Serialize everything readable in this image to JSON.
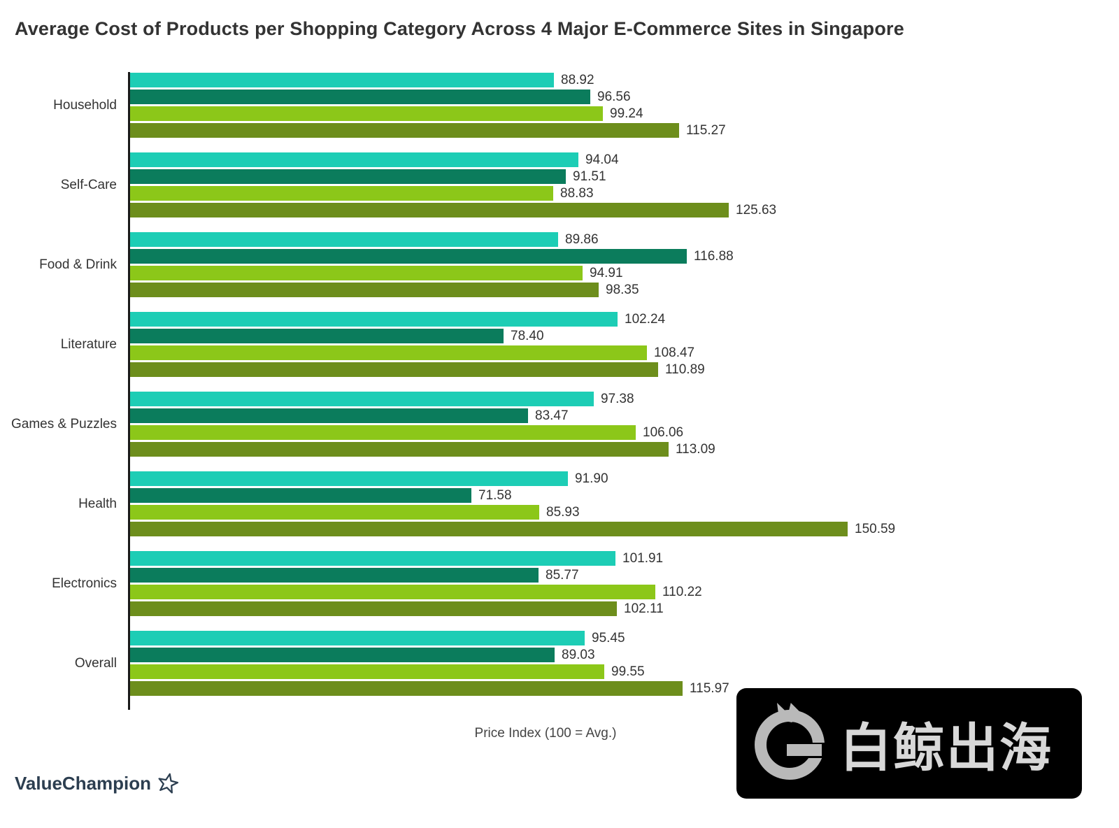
{
  "title": "Average Cost of Products per Shopping Category Across 4 Major E-Commerce Sites in Singapore",
  "chart_data": {
    "type": "bar",
    "orientation": "horizontal",
    "title": "Average Cost of Products per Shopping Category Across 4 Major E-Commerce Sites in Singapore",
    "xlabel": "Price Index (100 = Avg.)",
    "ylabel": "",
    "xlim": [
      0,
      160
    ],
    "grid": false,
    "legend": "none",
    "categories": [
      "Household",
      "Self-Care",
      "Food & Drink",
      "Literature",
      "Games & Puzzles",
      "Health",
      "Electronics",
      "Overall"
    ],
    "series": [
      {
        "name": "series-1-teal",
        "color": "#1DCDB5",
        "values": [
          88.92,
          94.04,
          89.86,
          102.24,
          97.38,
          91.9,
          101.91,
          95.45
        ]
      },
      {
        "name": "series-2-dark-green",
        "color": "#0B7C5C",
        "values": [
          96.56,
          91.51,
          116.88,
          78.4,
          83.47,
          71.58,
          85.77,
          89.03
        ]
      },
      {
        "name": "series-3-light-green",
        "color": "#8CC719",
        "values": [
          99.24,
          88.83,
          94.91,
          108.47,
          106.06,
          85.93,
          110.22,
          99.55
        ]
      },
      {
        "name": "series-4-olive",
        "color": "#6D8E1C",
        "values": [
          115.27,
          125.63,
          98.35,
          110.89,
          113.09,
          150.59,
          102.11,
          115.97
        ]
      }
    ],
    "value_label_format": "2-decimals"
  },
  "footer": {
    "brand": "ValueChampion",
    "star_icon": "star-outline-icon"
  },
  "watermark": {
    "text": "白鲸出海",
    "logo": "whale-g-logo",
    "bg_color": "#000000",
    "text_color": "#D8D8D8",
    "logo_color": "#B9B9B9"
  }
}
